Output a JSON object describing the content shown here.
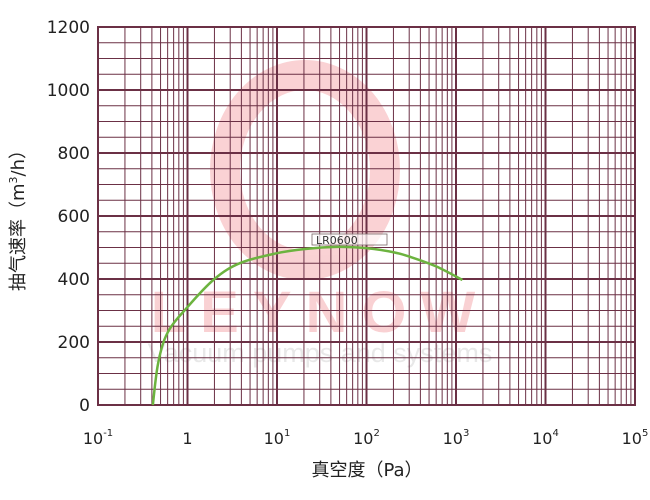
{
  "chart_data": {
    "type": "line",
    "title": "",
    "xlabel": "真空度（Pa）",
    "ylabel": "抽气速率（m³/h）",
    "ylabel_parts": {
      "pre": "抽气速率（m",
      "sup": "3",
      "post": "/h）"
    },
    "xscale": "log",
    "xlim": [
      0.1,
      100000
    ],
    "ylim": [
      0,
      1200
    ],
    "y_ticks": [
      0,
      200,
      400,
      600,
      800,
      1000,
      1200
    ],
    "x_ticks": [
      {
        "base": "10",
        "exp": "-1"
      },
      {
        "base": "1",
        "exp": ""
      },
      {
        "base": "10",
        "exp": "1"
      },
      {
        "base": "10",
        "exp": "2"
      },
      {
        "base": "10",
        "exp": "3"
      },
      {
        "base": "10",
        "exp": "4"
      },
      {
        "base": "10",
        "exp": "5"
      }
    ],
    "grid": true,
    "series": [
      {
        "name": "LR0600",
        "color": "#6cb33f",
        "x": [
          0.41,
          0.47,
          0.6,
          1.0,
          2.0,
          3.9,
          10,
          20,
          47,
          100,
          200,
          310,
          600,
          1180
        ],
        "y": [
          0,
          133,
          230,
          311,
          400,
          451,
          482,
          495,
          502,
          498,
          485,
          470,
          440,
          397
        ]
      }
    ],
    "annotations": [
      "LR0600"
    ],
    "watermark": {
      "brand": "LEYNOW",
      "tagline": "Vacuum pumps and systems"
    }
  }
}
